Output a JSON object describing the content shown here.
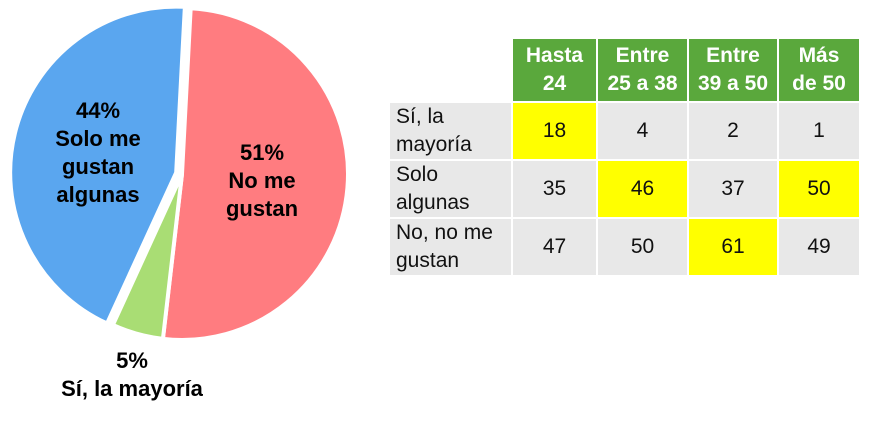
{
  "chart_data": [
    {
      "type": "pie",
      "slices": [
        {
          "pct_label": "51%",
          "name_lines": [
            "No me",
            "gustan"
          ],
          "value": 51,
          "color": "#ff7c80"
        },
        {
          "pct_label": "5%",
          "name_lines": [
            "Sí, la mayoría"
          ],
          "value": 5,
          "color": "#a9dd74"
        },
        {
          "pct_label": "44%",
          "name_lines": [
            "Solo me",
            "gustan",
            "algunas"
          ],
          "value": 44,
          "color": "#5aa6ef"
        }
      ]
    },
    {
      "type": "table",
      "columns": [
        "Hasta\n24",
        "Entre\n25 a 38",
        "Entre\n39 a 50",
        "Más\nde 50"
      ],
      "rows": [
        {
          "label": "Sí, la mayoría",
          "values": [
            "18",
            "4",
            "2",
            "1"
          ],
          "highlight": [
            true,
            false,
            false,
            false
          ]
        },
        {
          "label": "Solo algunas",
          "values": [
            "35",
            "46",
            "37",
            "50"
          ],
          "highlight": [
            false,
            true,
            false,
            true
          ]
        },
        {
          "label": "No, no me gustan",
          "values": [
            "47",
            "50",
            "61",
            "49"
          ],
          "highlight": [
            false,
            false,
            true,
            false
          ]
        }
      ]
    }
  ]
}
